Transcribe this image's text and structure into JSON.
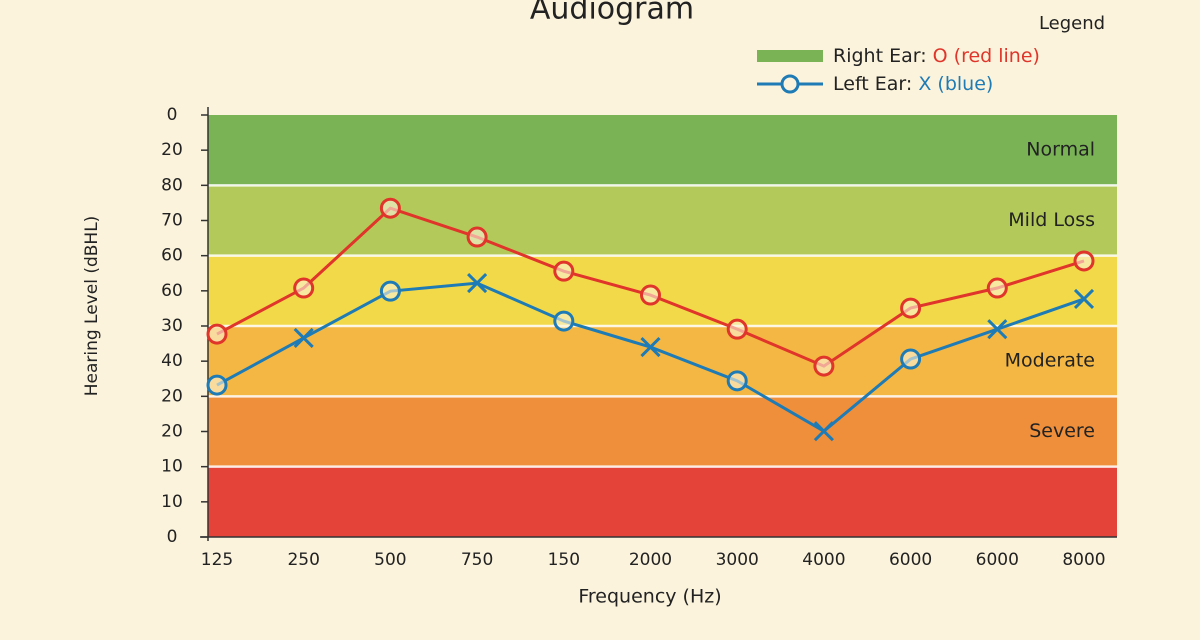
{
  "chart_data": {
    "type": "line",
    "title": "Audiogram",
    "xlabel": "Frequency (Hz)",
    "ylabel": "Hearing Level (dBHL)",
    "categories": [
      "125",
      "250",
      "500",
      "750",
      "150",
      "2000",
      "3000",
      "4000",
      "6000",
      "6000",
      "8000"
    ],
    "ylim": [
      0,
      12
    ],
    "yticks": [
      {
        "value": 12,
        "label": "0"
      },
      {
        "value": 11,
        "label": "20"
      },
      {
        "value": 10,
        "label": "80"
      },
      {
        "value": 9,
        "label": "70"
      },
      {
        "value": 8,
        "label": "60"
      },
      {
        "value": 7,
        "label": "60"
      },
      {
        "value": 6,
        "label": "30"
      },
      {
        "value": 5,
        "label": "40"
      },
      {
        "value": 4,
        "label": "20"
      },
      {
        "value": 3,
        "label": "20"
      },
      {
        "value": 2,
        "label": "10"
      },
      {
        "value": 1,
        "label": "10"
      },
      {
        "value": 0,
        "label": "0"
      }
    ],
    "bands": [
      {
        "name": "Normal",
        "range": [
          10,
          12
        ],
        "color": "#7ab356"
      },
      {
        "name": "Mild Loss",
        "range": [
          8,
          10
        ],
        "color": "#b3c959"
      },
      {
        "name": null,
        "range": [
          6,
          8
        ],
        "color": "#f2d94a"
      },
      {
        "name": "Moderate",
        "range": [
          4,
          6
        ],
        "color": "#f4b743"
      },
      {
        "name": "Severe",
        "range": [
          2,
          4
        ],
        "color": "#ef8f3b"
      },
      {
        "name": null,
        "range": [
          0,
          2
        ],
        "color": "#e4433a"
      }
    ],
    "legend_title": "Legend",
    "series": [
      {
        "name": "Right Ear:",
        "legend_detail": "O (red line)",
        "color": "#e0352a",
        "legend_color": "#7ab356",
        "legend_swatch": "bar",
        "markers": [
          "o",
          "o",
          "o",
          "o",
          "o",
          "o",
          "o",
          "o",
          "o",
          "o",
          "o"
        ],
        "values": [
          5.77,
          7.08,
          9.35,
          8.53,
          7.56,
          6.88,
          5.91,
          4.86,
          6.51,
          7.08,
          7.85
        ]
      },
      {
        "name": "Left Ear:",
        "legend_detail": "X (blue)",
        "color": "#1f7bb5",
        "legend_color": "#1f7bb5",
        "legend_swatch": "line",
        "markers": [
          "o",
          "x",
          "o",
          "x",
          "o",
          "x",
          "o",
          "x",
          "o",
          "x",
          "x"
        ],
        "values": [
          4.32,
          5.66,
          6.99,
          7.22,
          6.14,
          5.4,
          4.44,
          3.01,
          5.06,
          5.91,
          6.77
        ]
      }
    ]
  }
}
